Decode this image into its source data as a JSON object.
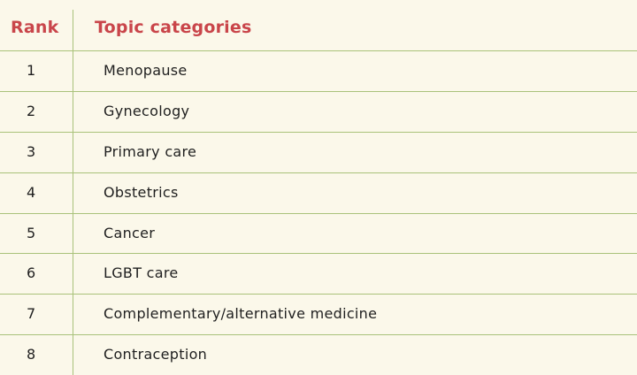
{
  "header": {
    "rank_label": "Rank",
    "topic_label": "Topic categories"
  },
  "rows": [
    {
      "rank": "1",
      "topic": "Menopause"
    },
    {
      "rank": "2",
      "topic": "Gynecology"
    },
    {
      "rank": "3",
      "topic": "Primary care"
    },
    {
      "rank": "4",
      "topic": "Obstetrics"
    },
    {
      "rank": "5",
      "topic": "Cancer"
    },
    {
      "rank": "6",
      "topic": "LGBT care"
    },
    {
      "rank": "7",
      "topic": "Complementary/alternative medicine"
    },
    {
      "rank": "8",
      "topic": "Contraception"
    }
  ],
  "colors": {
    "header_text": "#c9454a",
    "rule": "#a9c27a",
    "background": "#fbf8ea"
  }
}
